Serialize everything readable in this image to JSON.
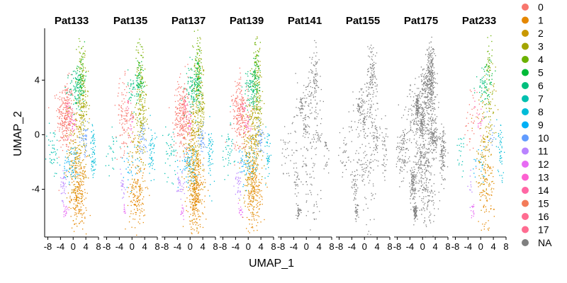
{
  "chart_data": {
    "type": "scatter",
    "title": "",
    "xlabel": "UMAP_1",
    "ylabel": "UMAP_2",
    "xlim": [
      -9,
      8
    ],
    "ylim": [
      -7.5,
      7.8
    ],
    "x_ticks": [
      -8,
      -4,
      0,
      4,
      8
    ],
    "x_tick_labels": [
      "-8",
      "-4",
      "0",
      "4",
      "8"
    ],
    "y_ticks": [
      -4,
      0,
      4
    ],
    "y_tick_labels": [
      "-4",
      "0",
      "4"
    ],
    "facet_by": "patient",
    "panels": [
      "Pat133",
      "Pat135",
      "Pat137",
      "Pat139",
      "Pat141",
      "Pat155",
      "Pat175",
      "Pat233"
    ],
    "legend": {
      "position": "right",
      "entries": [
        {
          "label": "0",
          "color": "#F8766D"
        },
        {
          "label": "1",
          "color": "#E58700"
        },
        {
          "label": "2",
          "color": "#C99800"
        },
        {
          "label": "3",
          "color": "#A3A500"
        },
        {
          "label": "4",
          "color": "#6BB100"
        },
        {
          "label": "5",
          "color": "#00BA38"
        },
        {
          "label": "6",
          "color": "#00BF7D"
        },
        {
          "label": "7",
          "color": "#00C0AF"
        },
        {
          "label": "8",
          "color": "#00BCD8"
        },
        {
          "label": "9",
          "color": "#00B0F6"
        },
        {
          "label": "10",
          "color": "#619CFF"
        },
        {
          "label": "11",
          "color": "#B983FF"
        },
        {
          "label": "12",
          "color": "#E76BF3"
        },
        {
          "label": "13",
          "color": "#FD61D1"
        },
        {
          "label": "14",
          "color": "#FF67A4"
        },
        {
          "label": "15",
          "color": "#F37B59"
        },
        {
          "label": "16",
          "color": "#FF6C91"
        },
        {
          "label": "17",
          "color": "#FF6C91"
        },
        {
          "label": "NA",
          "color": "#7F7F7F"
        }
      ]
    },
    "clusters": [
      {
        "group": "0",
        "cx": -2.6,
        "cy": 1.4,
        "sx": 1.3,
        "sy": 1.3
      },
      {
        "group": "1",
        "cx": 1.6,
        "cy": -4.3,
        "sx": 1.3,
        "sy": 1.4
      },
      {
        "group": "2",
        "cx": 0.8,
        "cy": -1.2,
        "sx": 1.4,
        "sy": 1.8
      },
      {
        "group": "3",
        "cx": 2.8,
        "cy": 2.0,
        "sx": 0.9,
        "sy": 1.7
      },
      {
        "group": "4",
        "cx": 2.4,
        "cy": 5.3,
        "sx": 0.6,
        "sy": 1.0
      },
      {
        "group": "5",
        "cx": 2.3,
        "cy": 4.1,
        "sx": 0.7,
        "sy": 0.8
      },
      {
        "group": "6",
        "cx": 0.8,
        "cy": 3.3,
        "sx": 1.1,
        "sy": 0.8
      },
      {
        "group": "7",
        "cx": -6.5,
        "cy": -1.2,
        "sx": 1.0,
        "sy": 1.0
      },
      {
        "group": "8",
        "cx": 6.2,
        "cy": -1.3,
        "sx": 0.5,
        "sy": 1.0
      },
      {
        "group": "9",
        "cx": -0.6,
        "cy": -2.1,
        "sx": 1.4,
        "sy": 0.7
      },
      {
        "group": "10",
        "cx": 3.4,
        "cy": -0.2,
        "sx": 0.7,
        "sy": 0.6
      },
      {
        "group": "11",
        "cx": -3.2,
        "cy": -3.6,
        "sx": 0.5,
        "sy": 0.6
      },
      {
        "group": "12",
        "cx": -2.5,
        "cy": -5.6,
        "sx": 0.3,
        "sy": 0.3
      },
      {
        "group": "13",
        "cx": -0.2,
        "cy": 0.8,
        "sx": 0.5,
        "sy": 0.5
      },
      {
        "group": "14",
        "cx": -1.6,
        "cy": 2.1,
        "sx": 0.4,
        "sy": 0.4
      }
    ],
    "panel_mix": [
      {
        "name": "Pat133",
        "counts": [
          260,
          230,
          170,
          150,
          40,
          60,
          90,
          40,
          60,
          60,
          40,
          35,
          20,
          25,
          20
        ]
      },
      {
        "name": "Pat135",
        "counts": [
          110,
          150,
          60,
          140,
          40,
          45,
          55,
          25,
          50,
          30,
          35,
          20,
          10,
          15,
          8
        ]
      },
      {
        "name": "Pat137",
        "counts": [
          260,
          300,
          240,
          160,
          60,
          60,
          100,
          40,
          50,
          70,
          40,
          30,
          15,
          20,
          15
        ]
      },
      {
        "name": "Pat139",
        "counts": [
          230,
          220,
          210,
          160,
          60,
          50,
          90,
          40,
          40,
          60,
          40,
          30,
          15,
          20,
          15
        ]
      },
      {
        "name": "Pat141",
        "gray": true,
        "total": 420
      },
      {
        "name": "Pat155",
        "gray": true,
        "total": 520
      },
      {
        "name": "Pat175",
        "gray": true,
        "total": 1500
      },
      {
        "name": "Pat233",
        "counts": [
          40,
          90,
          110,
          60,
          30,
          25,
          50,
          20,
          45,
          20,
          15,
          10,
          15,
          12,
          5
        ]
      }
    ]
  }
}
